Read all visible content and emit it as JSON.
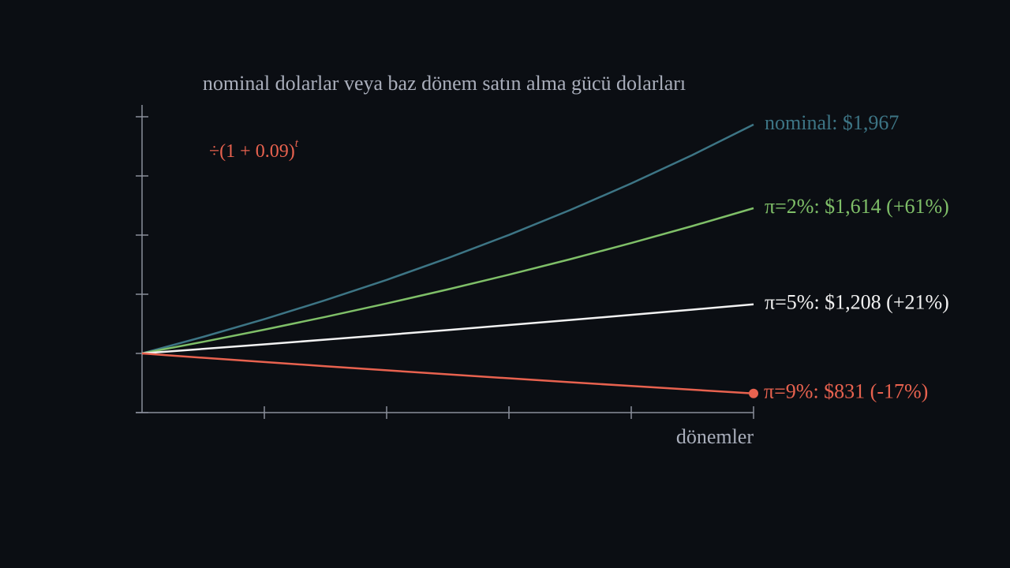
{
  "chart_data": {
    "type": "line",
    "title": "nominal dolarlar veya baz dönem satın alma gücü dolarları",
    "x_label": "dönemler",
    "annotation": {
      "base": "÷(1 + 0.09)",
      "exponent": "t",
      "color": "#e8624f"
    },
    "x": [
      0,
      1,
      2,
      3,
      4,
      5,
      6,
      7,
      8,
      9,
      10
    ],
    "xlim": [
      0,
      10
    ],
    "xticks": [
      2,
      4,
      6,
      8,
      10
    ],
    "ylim": [
      750,
      2000
    ],
    "yticks": [
      750,
      1000,
      1250,
      1500,
      1750,
      2000
    ],
    "series": [
      {
        "name": "nominal: $1,967",
        "color": "#3d7585",
        "values": [
          1000,
          1070,
          1144.9,
          1225.04,
          1310.8,
          1402.55,
          1500.73,
          1605.78,
          1718.19,
          1838.46,
          1967.15
        ]
      },
      {
        "name": "π=2%: $1,614 (+61%)",
        "color": "#7fbf68",
        "values": [
          1000,
          1049.02,
          1100.44,
          1154.38,
          1210.97,
          1270.33,
          1332.6,
          1397.92,
          1466.44,
          1538.32,
          1613.72
        ]
      },
      {
        "name": "π=5%: $1,208 (+21%)",
        "color": "#f2f2f2",
        "values": [
          1000,
          1019.05,
          1038.46,
          1058.24,
          1078.39,
          1098.94,
          1119.87,
          1141.2,
          1162.93,
          1185.08,
          1207.67
        ]
      },
      {
        "name": "π=9%: $831 (-17%)",
        "color": "#e8624f",
        "end_marker": true,
        "values": [
          1000,
          981.65,
          963.64,
          945.96,
          928.6,
          911.56,
          894.84,
          878.42,
          862.3,
          846.48,
          830.95
        ]
      }
    ]
  }
}
